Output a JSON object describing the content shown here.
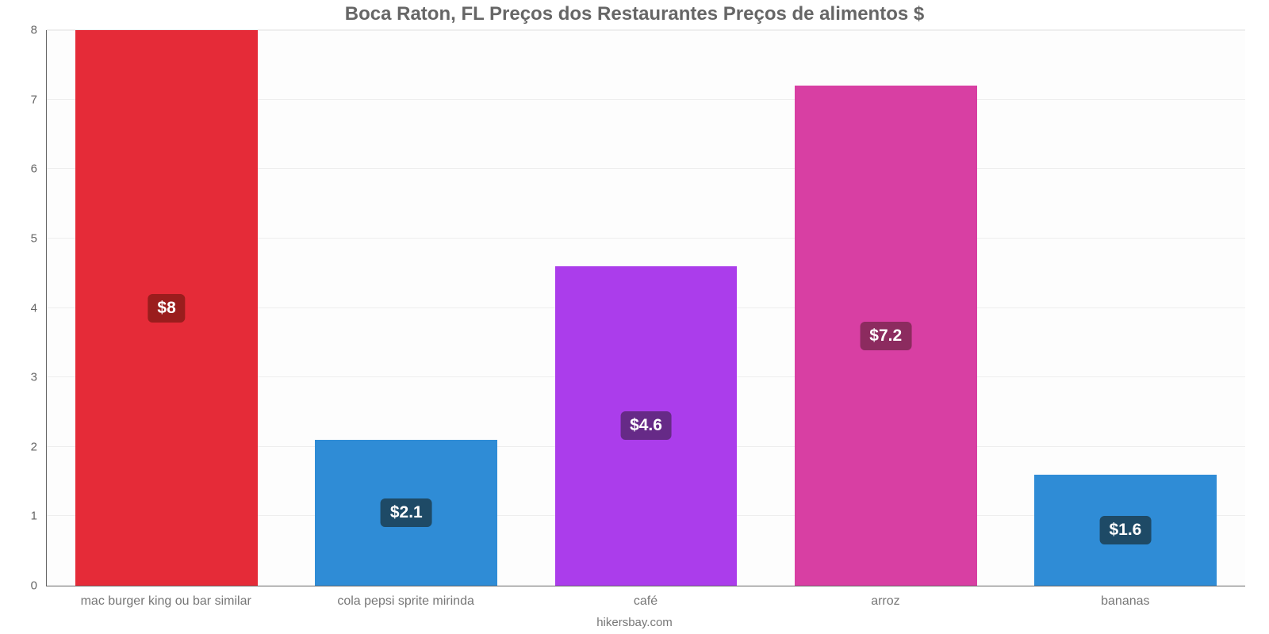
{
  "chart": {
    "type": "bar",
    "title": "Boca Raton, FL Preços dos Restaurantes Preços de alimentos $",
    "title_fontsize": 24,
    "title_color": "#666666",
    "attribution": "hikersbay.com",
    "attribution_color": "#777777",
    "background_color": "#ffffff",
    "plot_bg": "#fdfdfd",
    "axis_color": "#666666",
    "grid_color": "#eeeeee",
    "ylim": [
      0,
      8
    ],
    "ytick_step": 1,
    "yticks": [
      0,
      1,
      2,
      3,
      4,
      5,
      6,
      7,
      8
    ],
    "ytick_color": "#666666",
    "xtick_color": "#777777",
    "bar_width_pct": 76,
    "value_label_fontsize": 21,
    "bars": [
      {
        "label": "mac burger king ou bar similar",
        "value": 8.0,
        "value_label": "$8",
        "color": "#e52b38",
        "badge_bg": "#9a1d1d"
      },
      {
        "label": "cola pepsi sprite mirinda",
        "value": 2.1,
        "value_label": "$2.1",
        "color": "#2f8cd6",
        "badge_bg": "#1e4a66"
      },
      {
        "label": "café",
        "value": 4.6,
        "value_label": "$4.6",
        "color": "#ab3deb",
        "badge_bg": "#662a87"
      },
      {
        "label": "arroz",
        "value": 7.2,
        "value_label": "$7.2",
        "color": "#d83fa3",
        "badge_bg": "#8c2b5f"
      },
      {
        "label": "bananas",
        "value": 1.6,
        "value_label": "$1.6",
        "color": "#2f8cd6",
        "badge_bg": "#1e4a66"
      }
    ]
  }
}
